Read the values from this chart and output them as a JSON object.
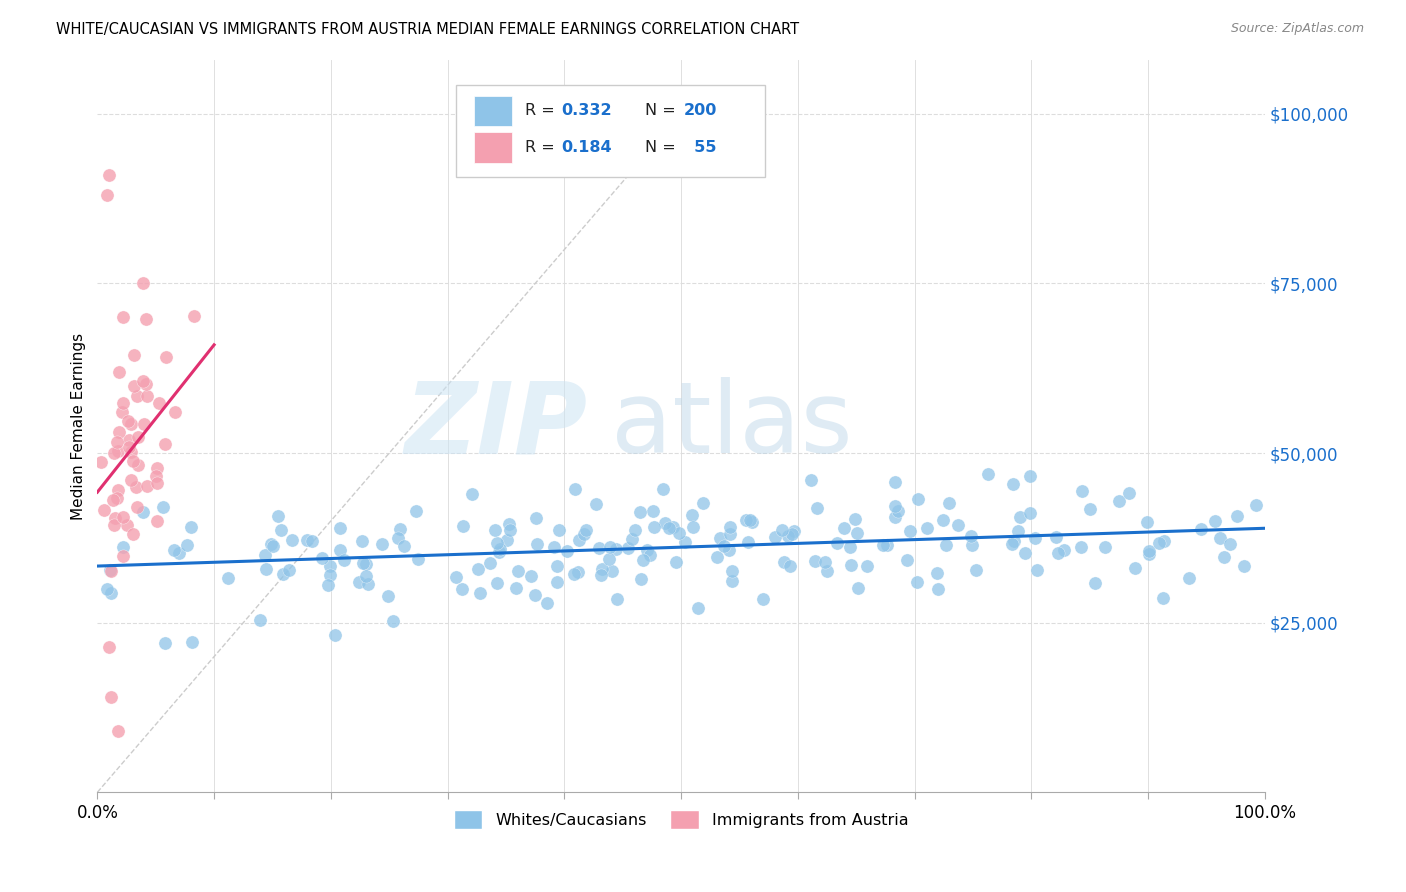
{
  "title": "WHITE/CAUCASIAN VS IMMIGRANTS FROM AUSTRIA MEDIAN FEMALE EARNINGS CORRELATION CHART",
  "source": "Source: ZipAtlas.com",
  "ylabel": "Median Female Earnings",
  "blue_color": "#8fc4e8",
  "pink_color": "#f4a0b0",
  "blue_line_color": "#1a6fcc",
  "pink_line_color": "#e03070",
  "diagonal_color": "#cccccc",
  "R_blue": 0.332,
  "N_blue": 200,
  "R_pink": 0.184,
  "N_pink": 55,
  "background_color": "#ffffff",
  "axis_label_color": "#1a6fcc",
  "legend_label1": "Whites/Caucasians",
  "legend_label2": "Immigrants from Austria",
  "yticks": [
    25000,
    50000,
    75000,
    100000
  ],
  "ytick_labels": [
    "$25,000",
    "$50,000",
    "$75,000",
    "$100,000"
  ],
  "ylim_min": 0,
  "ylim_max": 108000,
  "xlim_min": 0.0,
  "xlim_max": 1.0
}
